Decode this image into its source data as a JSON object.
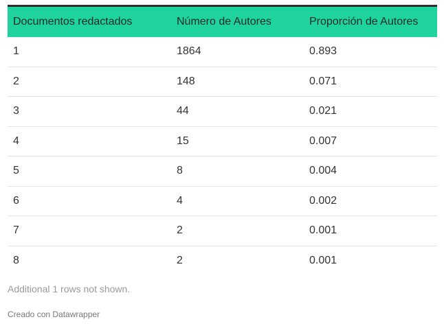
{
  "chart_data": {
    "type": "table",
    "columns": [
      "Documentos redactados",
      "Número de Autores",
      "Proporción de Autores"
    ],
    "rows": [
      [
        "1",
        "1864",
        "0.893"
      ],
      [
        "2",
        "148",
        "0.071"
      ],
      [
        "3",
        "44",
        "0.021"
      ],
      [
        "4",
        "15",
        "0.007"
      ],
      [
        "5",
        "8",
        "0.004"
      ],
      [
        "6",
        "4",
        "0.002"
      ],
      [
        "7",
        "2",
        "0.001"
      ],
      [
        "8",
        "2",
        "0.001"
      ]
    ],
    "note": "Additional 1 rows not shown.",
    "footer": "Creado con Datawrapper"
  },
  "colors": {
    "header_background": "#1fd39e",
    "header_top_border": "#2e2e2e"
  }
}
